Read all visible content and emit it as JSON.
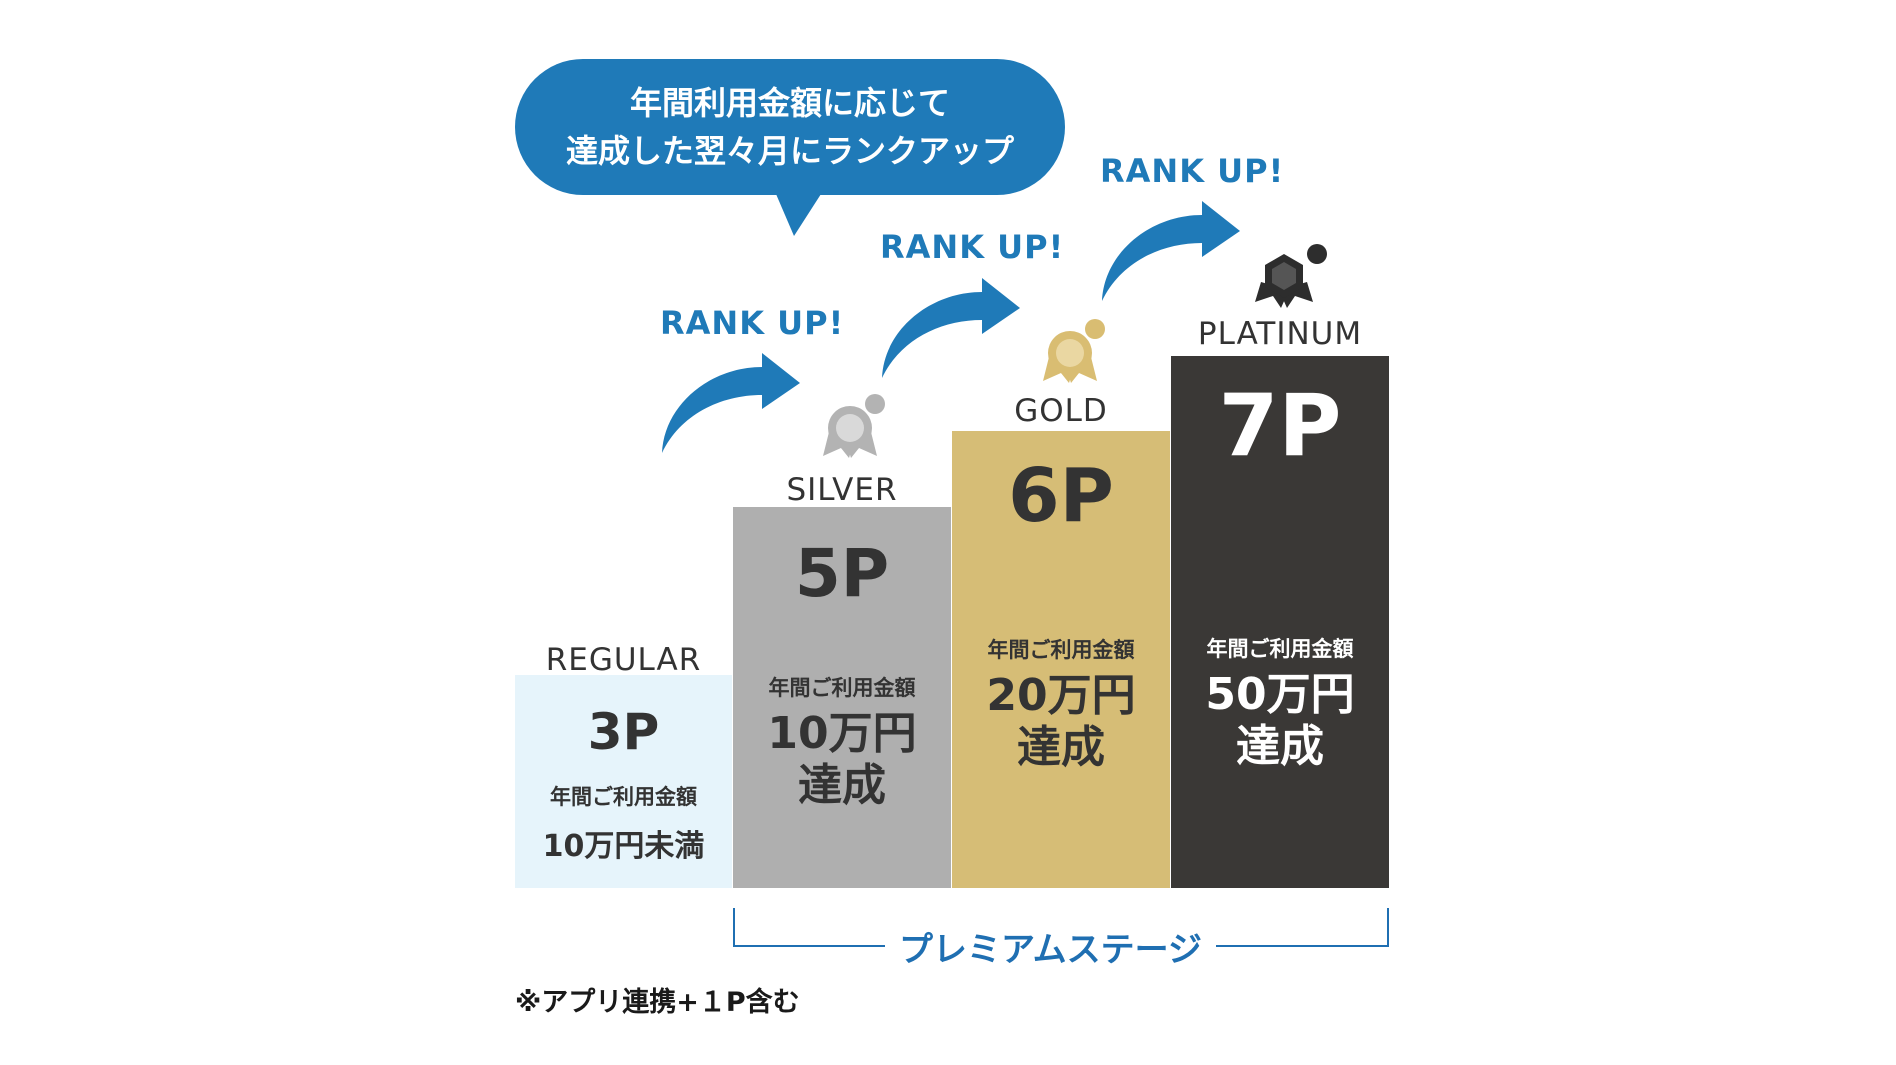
{
  "bubble": {
    "line1": "年間利用金額に応じて",
    "line2": "達成した翌々月にランクアップ"
  },
  "rank_up_label": "RANK UP!",
  "tiers": [
    {
      "name": "REGULAR",
      "points": "3P",
      "condition_small": "年間ご利用金額",
      "condition_big": "10万円未満",
      "color": "#e6f4fb",
      "text_color": "#333333"
    },
    {
      "name": "SILVER",
      "points": "5P",
      "condition_small": "年間ご利用金額",
      "condition_big_line1": "10万円",
      "condition_big_line2": "達成",
      "color": "#afafaf",
      "text_color": "#333333"
    },
    {
      "name": "GOLD",
      "points": "6P",
      "condition_small": "年間ご利用金額",
      "condition_big_line1": "20万円",
      "condition_big_line2": "達成",
      "color": "#d6bd76",
      "text_color": "#333333"
    },
    {
      "name": "PLATINUM",
      "points": "7P",
      "condition_small": "年間ご利用金額",
      "condition_big_line1": "50万円",
      "condition_big_line2": "達成",
      "color": "#3a3836",
      "text_color": "#ffffff"
    }
  ],
  "icons": {
    "silver": "medal-icon",
    "gold": "medal-icon",
    "platinum": "crown-badge-icon",
    "arrow": "curved-arrow-icon"
  },
  "colors": {
    "accent_blue": "#1f7ab8",
    "bracket_blue": "#1f6fb2",
    "silver_icon": "#b3b3b3",
    "gold_icon": "#d9bd72",
    "platinum_icon": "#2d2d2d"
  },
  "premium_stage_label": "プレミアムステージ",
  "footnote": "※アプリ連携+１P含む"
}
